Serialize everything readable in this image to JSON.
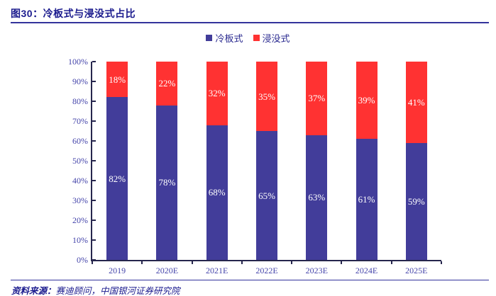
{
  "figure": {
    "title": "图30：冷板式与浸没式占比",
    "source_label": "资料来源：",
    "source_text": "赛迪顾问，中国银河证券研究院"
  },
  "chart_data": {
    "type": "bar",
    "stacked": true,
    "title": "图30：冷板式与浸没式占比",
    "categories": [
      "2019",
      "2020E",
      "2021E",
      "2022E",
      "2023E",
      "2024E",
      "2025E"
    ],
    "series": [
      {
        "name": "冷板式",
        "color": "#423d9a",
        "values": [
          82,
          78,
          68,
          65,
          63,
          61,
          59
        ]
      },
      {
        "name": "浸没式",
        "color": "#ff3232",
        "values": [
          18,
          22,
          32,
          35,
          37,
          39,
          41
        ]
      }
    ],
    "value_label_suffix": "%",
    "ylim": [
      0,
      100
    ],
    "ytick_step": 10,
    "ytick_labels": [
      "0%",
      "10%",
      "20%",
      "30%",
      "40%",
      "50%",
      "60%",
      "70%",
      "80%",
      "90%",
      "100%"
    ],
    "xlabel": "",
    "ylabel": "",
    "grid": false,
    "legend_position": "top"
  },
  "colors": {
    "cold_plate_blue": "#423d9a",
    "immersion_red": "#ff3232",
    "axis_text": "#4444aa",
    "title_navy": "#1b1b8e",
    "rule_navy": "#33339b",
    "axis_line": "#26264d"
  }
}
